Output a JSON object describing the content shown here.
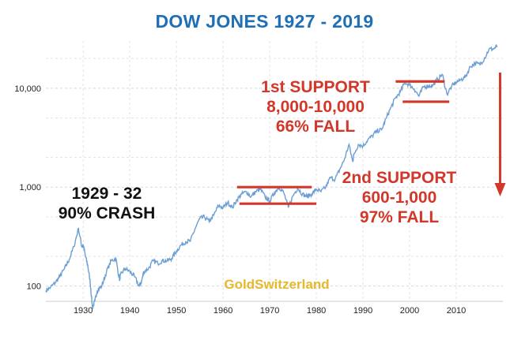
{
  "chart_data": {
    "type": "line",
    "title": "DOW JONES 1927 - 2019",
    "yscale": "log",
    "ylim": [
      70,
      30000
    ],
    "xlim": [
      1922,
      2020
    ],
    "grid": true,
    "xticks": [
      1930,
      1940,
      1950,
      1960,
      1970,
      1980,
      1990,
      2000,
      2010
    ],
    "xtick_labels": [
      "1930",
      "1940",
      "1950",
      "1960",
      "1970",
      "1980",
      "1990",
      "2000",
      "2010"
    ],
    "yticks": [
      100,
      1000,
      10000
    ],
    "ytick_labels": [
      "100",
      "1,000",
      "10,000"
    ],
    "line_color": "#6b9fd4",
    "series": [
      {
        "x": [
          1922,
          1923,
          1924,
          1925,
          1926,
          1927,
          1928,
          1929,
          1929.7,
          1930,
          1930.5,
          1931,
          1931.5,
          1932,
          1932.5,
          1933,
          1934,
          1935,
          1936,
          1937,
          1937.8,
          1938,
          1939,
          1940,
          1941,
          1942,
          1942.5,
          1943,
          1944,
          1945,
          1946,
          1947,
          1948,
          1949,
          1950,
          1951,
          1952,
          1953,
          1954,
          1955,
          1956,
          1957,
          1958,
          1959,
          1960,
          1961,
          1962,
          1963,
          1964,
          1965,
          1966,
          1967,
          1968,
          1969,
          1970,
          1971,
          1972,
          1973,
          1974,
          1975,
          1976,
          1977,
          1978,
          1979,
          1980,
          1981,
          1982,
          1983,
          1984,
          1985,
          1986,
          1987,
          1987.8,
          1988,
          1989,
          1990,
          1991,
          1992,
          1993,
          1994,
          1995,
          1996,
          1997,
          1998,
          1999,
          2000,
          2001,
          2002,
          2003,
          2004,
          2005,
          2006,
          2007,
          2008,
          2009,
          2010,
          2011,
          2012,
          2013,
          2014,
          2015,
          2016,
          2017,
          2018,
          2018.8
        ],
        "y": [
          90,
          97,
          108,
          125,
          150,
          185,
          250,
          381,
          250,
          260,
          200,
          160,
          110,
          60,
          70,
          90,
          100,
          140,
          180,
          190,
          115,
          130,
          150,
          140,
          125,
          100,
          110,
          140,
          150,
          180,
          170,
          180,
          180,
          190,
          225,
          260,
          280,
          285,
          380,
          480,
          500,
          450,
          520,
          650,
          620,
          700,
          620,
          750,
          850,
          900,
          800,
          900,
          950,
          800,
          720,
          880,
          1000,
          880,
          620,
          820,
          980,
          850,
          800,
          850,
          950,
          900,
          1000,
          1250,
          1200,
          1500,
          1900,
          2700,
          1800,
          2100,
          2700,
          2600,
          3000,
          3300,
          3700,
          3800,
          5000,
          6400,
          8000,
          9200,
          11400,
          10800,
          9800,
          8300,
          10400,
          10500,
          10700,
          12400,
          13800,
          8700,
          10400,
          11500,
          12200,
          13100,
          16500,
          17800,
          17400,
          19800,
          24700,
          25000,
          26800
        ]
      }
    ],
    "annotations": {
      "crash": [
        "1929 - 32",
        "90% CRASH"
      ],
      "support1": [
        "1st SUPPORT",
        "8,000-10,000",
        "66% FALL"
      ],
      "support2": [
        "2nd SUPPORT",
        "600-1,000",
        "97% FALL"
      ]
    },
    "accent_color": "#d2372a",
    "watermark": "GoldSwitzerland"
  }
}
